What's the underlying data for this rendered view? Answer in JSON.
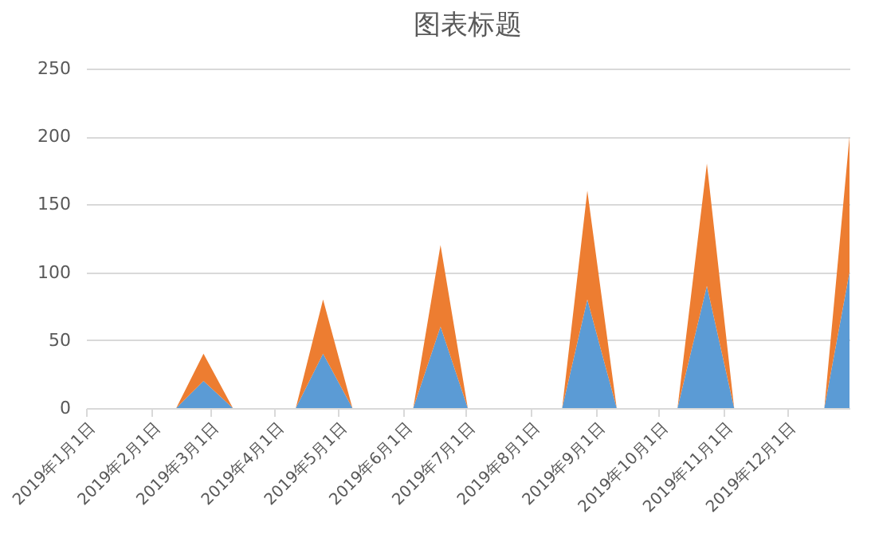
{
  "chart_data": {
    "type": "area",
    "title": "图表标题",
    "stacked": true,
    "x": [
      "2019-01-01",
      "2019-02-13",
      "2019-02-26",
      "2019-03-12",
      "2019-04-11",
      "2019-04-24",
      "2019-05-08",
      "2019-06-06",
      "2019-06-19",
      "2019-07-02",
      "2019-08-16",
      "2019-08-28",
      "2019-09-11",
      "2019-10-10",
      "2019-10-24",
      "2019-11-06",
      "2019-12-19",
      "2019-12-31"
    ],
    "series": [
      {
        "color": "#5b9bd5",
        "values": [
          0,
          0,
          20,
          0,
          0,
          40,
          0,
          0,
          60,
          0,
          0,
          80,
          0,
          0,
          90,
          0,
          0,
          100
        ]
      },
      {
        "color": "#ed7d31",
        "values": [
          0,
          0,
          20,
          0,
          0,
          40,
          0,
          0,
          60,
          0,
          0,
          80,
          0,
          0,
          90,
          0,
          0,
          100
        ]
      }
    ],
    "xlim": [
      "2019-01-01",
      "2019-12-31"
    ],
    "xticks": [
      {
        "value": "2019-01-01",
        "label": "2019年1月1日"
      },
      {
        "value": "2019-02-01",
        "label": "2019年2月1日"
      },
      {
        "value": "2019-03-01",
        "label": "2019年3月1日"
      },
      {
        "value": "2019-04-01",
        "label": "2019年4月1日"
      },
      {
        "value": "2019-05-01",
        "label": "2019年5月1日"
      },
      {
        "value": "2019-06-01",
        "label": "2019年6月1日"
      },
      {
        "value": "2019-07-01",
        "label": "2019年7月1日"
      },
      {
        "value": "2019-08-01",
        "label": "2019年8月1日"
      },
      {
        "value": "2019-09-01",
        "label": "2019年9月1日"
      },
      {
        "value": "2019-10-01",
        "label": "2019年10月1日"
      },
      {
        "value": "2019-11-01",
        "label": "2019年11月1日"
      },
      {
        "value": "2019-12-01",
        "label": "2019年12月1日"
      }
    ],
    "ylim": [
      0,
      250
    ],
    "yticks": [
      0,
      50,
      100,
      150,
      200,
      250
    ],
    "grid": "y"
  }
}
